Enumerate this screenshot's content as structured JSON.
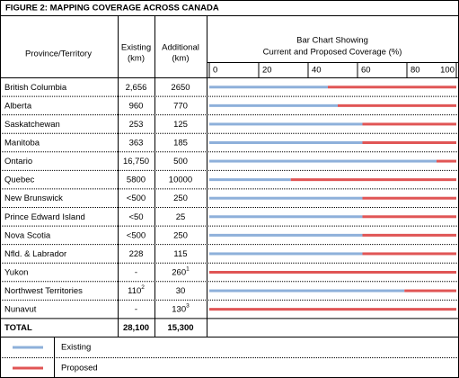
{
  "title": "FIGURE 2: MAPPING COVERAGE ACROSS CANADA",
  "header": {
    "province": "Province/Territory",
    "existing": [
      "Existing",
      "(km)"
    ],
    "additional": [
      "Additional",
      "(km)"
    ]
  },
  "chart": {
    "title": [
      "Bar Chart Showing",
      "Current and Proposed Coverage (%)"
    ],
    "xlim": [
      0,
      100
    ],
    "ticks": [
      0,
      20,
      40,
      60,
      80,
      100
    ],
    "series": [
      {
        "name": "Existing",
        "color": "#8eb0da"
      },
      {
        "name": "Proposed",
        "color": "#e05555"
      }
    ]
  },
  "rows": [
    {
      "province": "British Columbia",
      "existing": "2,656",
      "additional": "2650",
      "current": 48,
      "proposed": 52
    },
    {
      "province": "Alberta",
      "existing": "960",
      "additional": "770",
      "current": 52,
      "proposed": 48
    },
    {
      "province": "Saskatchewan",
      "existing": "253",
      "additional": "125",
      "current": 62,
      "proposed": 38
    },
    {
      "province": "Manitoba",
      "existing": "363",
      "additional": "185",
      "current": 62,
      "proposed": 38
    },
    {
      "province": "Ontario",
      "existing": "16,750",
      "additional": "500",
      "current": 92,
      "proposed": 8
    },
    {
      "province": "Quebec",
      "existing": "5800",
      "additional": "10000",
      "current": 33,
      "proposed": 67
    },
    {
      "province": "New Brunswick",
      "existing": "<500",
      "additional": "250",
      "current": 62,
      "proposed": 38
    },
    {
      "province": "Prince Edward Island",
      "existing": "<50",
      "additional": "25",
      "current": 62,
      "proposed": 38
    },
    {
      "province": "Nova Scotia",
      "existing": "<500",
      "additional": "250",
      "current": 62,
      "proposed": 38
    },
    {
      "province": "Nfld. & Labrador",
      "existing": "228",
      "additional": "115",
      "current": 62,
      "proposed": 38
    },
    {
      "province": "Yukon",
      "existing": "-",
      "additional": "260",
      "additional_note": "1",
      "current": 0,
      "proposed": 100
    },
    {
      "province": "Northwest Territories",
      "existing": "110",
      "existing_note": "2",
      "additional": "30",
      "current": 79,
      "proposed": 21
    },
    {
      "province": "Nunavut",
      "existing": "-",
      "additional": "130",
      "additional_note": "3",
      "current": 0,
      "proposed": 100
    }
  ],
  "total": {
    "province": "TOTAL",
    "existing": "28,100",
    "additional": "15,300"
  }
}
